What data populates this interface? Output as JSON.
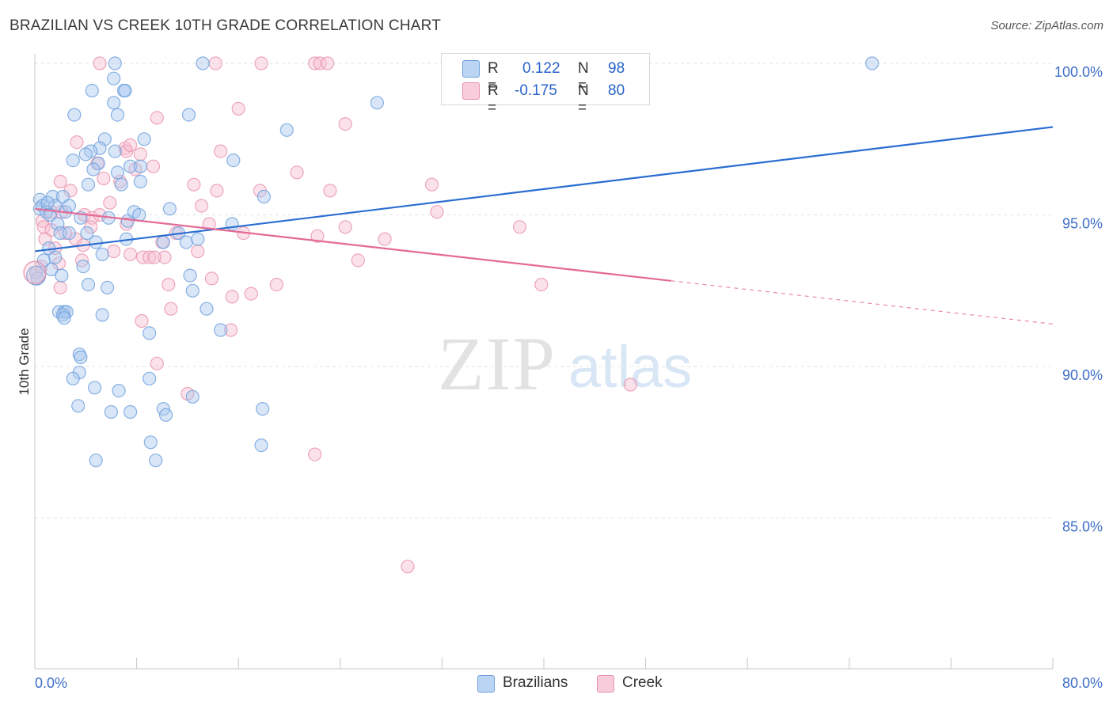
{
  "header": {
    "title": "BRAZILIAN VS CREEK 10TH GRADE CORRELATION CHART",
    "source": "Source: ZipAtlas.com"
  },
  "legend": {
    "rows": [
      {
        "r_label": "R =",
        "r_value": "0.122",
        "n_label": "N =",
        "n_value": "98"
      },
      {
        "r_label": "R =",
        "r_value": "-0.175",
        "n_label": "N =",
        "n_value": "80"
      }
    ]
  },
  "bottom_legend": {
    "items": [
      {
        "label": "Brazilians"
      },
      {
        "label": "Creek"
      }
    ]
  },
  "watermark": {
    "zip": "ZIP",
    "atlas": "atlas"
  },
  "colors": {
    "blue_fill": "#a9c8ef",
    "blue_stroke": "#6d9fdc",
    "blue_line": "#2a6dd1",
    "pink_fill": "#f6bfd0",
    "pink_stroke": "#e891ad",
    "pink_line": "#e46a95",
    "value_text": "#3f6fc9"
  },
  "chart_data": {
    "type": "scatter",
    "title": "BRAZILIAN VS CREEK 10TH GRADE CORRELATION CHART",
    "xlabel": "",
    "ylabel": "10th Grade",
    "xlim": [
      0,
      80
    ],
    "ylim": [
      80.7,
      101.0
    ],
    "x_tick_labels": [
      "0.0%",
      "80.0%"
    ],
    "y_ticks": [
      85,
      90,
      95,
      100
    ],
    "y_tick_labels": [
      "85.0%",
      "90.0%",
      "95.0%",
      "100.0%"
    ],
    "grid": true,
    "series": [
      {
        "name": "Brazilians",
        "r": 0.122,
        "n": 98,
        "trend": {
          "x0": 0,
          "y0": 93.8,
          "x1": 80,
          "y1": 97.9,
          "solid_until": 80
        },
        "points": [
          [
            6.3,
            100
          ],
          [
            13.2,
            100
          ],
          [
            65.8,
            100
          ],
          [
            6.2,
            99.5
          ],
          [
            4.5,
            99.1
          ],
          [
            7.0,
            99.1
          ],
          [
            7.1,
            99.1
          ],
          [
            6.2,
            98.7
          ],
          [
            26.9,
            98.7
          ],
          [
            3.1,
            98.3
          ],
          [
            6.5,
            98.3
          ],
          [
            12.1,
            98.3
          ],
          [
            19.8,
            97.8
          ],
          [
            5.5,
            97.5
          ],
          [
            8.6,
            97.5
          ],
          [
            5.1,
            97.2
          ],
          [
            4.4,
            97.1
          ],
          [
            4.0,
            97.0
          ],
          [
            6.3,
            97.1
          ],
          [
            3.0,
            96.8
          ],
          [
            5.0,
            96.7
          ],
          [
            7.5,
            96.6
          ],
          [
            15.6,
            96.8
          ],
          [
            4.6,
            96.5
          ],
          [
            6.5,
            96.4
          ],
          [
            8.3,
            96.1
          ],
          [
            4.2,
            96.0
          ],
          [
            0.4,
            95.5
          ],
          [
            1.4,
            95.6
          ],
          [
            2.2,
            95.6
          ],
          [
            18.0,
            95.6
          ],
          [
            1.6,
            95.3
          ],
          [
            0.6,
            95.3
          ],
          [
            0.4,
            95.2
          ],
          [
            0.9,
            95.1
          ],
          [
            2.4,
            95.1
          ],
          [
            10.6,
            95.2
          ],
          [
            1.2,
            95.0
          ],
          [
            5.8,
            94.9
          ],
          [
            1.8,
            94.7
          ],
          [
            7.3,
            94.8
          ],
          [
            15.5,
            94.7
          ],
          [
            2.0,
            94.4
          ],
          [
            4.1,
            94.4
          ],
          [
            11.3,
            94.4
          ],
          [
            7.2,
            94.2
          ],
          [
            4.8,
            94.1
          ],
          [
            10.1,
            94.1
          ],
          [
            11.9,
            94.1
          ],
          [
            2.7,
            94.4
          ],
          [
            1.1,
            93.9
          ],
          [
            5.3,
            93.7
          ],
          [
            1.6,
            93.6
          ],
          [
            3.8,
            93.3
          ],
          [
            1.3,
            93.2
          ],
          [
            0.1,
            93.1
          ],
          [
            2.1,
            93.0
          ],
          [
            12.2,
            93.0
          ],
          [
            0.2,
            92.9
          ],
          [
            4.2,
            92.7
          ],
          [
            5.7,
            92.6
          ],
          [
            12.4,
            92.5
          ],
          [
            1.9,
            91.8
          ],
          [
            2.3,
            91.8
          ],
          [
            5.3,
            91.7
          ],
          [
            13.5,
            91.9
          ],
          [
            2.5,
            91.8
          ],
          [
            2.2,
            91.7
          ],
          [
            2.3,
            91.6
          ],
          [
            14.6,
            91.2
          ],
          [
            9.0,
            91.1
          ],
          [
            3.5,
            90.4
          ],
          [
            3.6,
            90.3
          ],
          [
            3.5,
            89.8
          ],
          [
            3.0,
            89.6
          ],
          [
            9.0,
            89.6
          ],
          [
            4.7,
            89.3
          ],
          [
            6.6,
            89.2
          ],
          [
            12.4,
            89.0
          ],
          [
            3.4,
            88.7
          ],
          [
            6.0,
            88.5
          ],
          [
            7.5,
            88.5
          ],
          [
            10.1,
            88.6
          ],
          [
            10.3,
            88.4
          ],
          [
            17.9,
            88.6
          ],
          [
            9.1,
            87.5
          ],
          [
            17.8,
            87.4
          ],
          [
            4.8,
            86.9
          ],
          [
            9.5,
            86.9
          ],
          [
            8.3,
            96.6
          ],
          [
            6.8,
            96.0
          ],
          [
            1.0,
            95.4
          ],
          [
            2.7,
            95.3
          ],
          [
            7.8,
            95.1
          ],
          [
            0.7,
            93.5
          ],
          [
            3.6,
            94.9
          ],
          [
            8.2,
            95.0
          ],
          [
            12.8,
            94.2
          ]
        ]
      },
      {
        "name": "Creek",
        "r": -0.175,
        "n": 80,
        "trend": {
          "x0": 0,
          "y0": 95.2,
          "x1": 80,
          "y1": 91.4,
          "solid_until": 50
        },
        "points": [
          [
            5.1,
            100
          ],
          [
            14.2,
            100
          ],
          [
            17.8,
            100
          ],
          [
            22.0,
            100
          ],
          [
            22.4,
            100
          ],
          [
            23.0,
            100
          ],
          [
            16.0,
            98.5
          ],
          [
            9.6,
            98.2
          ],
          [
            24.4,
            98.0
          ],
          [
            3.3,
            97.4
          ],
          [
            7.1,
            97.2
          ],
          [
            7.2,
            97.1
          ],
          [
            7.5,
            97.3
          ],
          [
            8.3,
            97.0
          ],
          [
            14.6,
            97.1
          ],
          [
            4.9,
            96.7
          ],
          [
            9.3,
            96.6
          ],
          [
            7.9,
            96.5
          ],
          [
            20.6,
            96.4
          ],
          [
            2.0,
            96.1
          ],
          [
            6.7,
            96.1
          ],
          [
            5.4,
            96.2
          ],
          [
            12.5,
            96.0
          ],
          [
            17.7,
            95.8
          ],
          [
            23.2,
            95.8
          ],
          [
            14.3,
            95.8
          ],
          [
            31.2,
            96.0
          ],
          [
            2.8,
            95.8
          ],
          [
            5.9,
            95.4
          ],
          [
            13.1,
            95.3
          ],
          [
            31.6,
            95.1
          ],
          [
            1.3,
            95.1
          ],
          [
            2.1,
            95.1
          ],
          [
            3.9,
            95.0
          ],
          [
            4.5,
            94.9
          ],
          [
            0.6,
            94.8
          ],
          [
            0.7,
            94.6
          ],
          [
            1.3,
            94.5
          ],
          [
            2.4,
            94.4
          ],
          [
            4.4,
            94.6
          ],
          [
            24.4,
            94.6
          ],
          [
            38.1,
            94.6
          ],
          [
            16.4,
            94.4
          ],
          [
            22.2,
            94.3
          ],
          [
            27.5,
            94.2
          ],
          [
            3.2,
            94.2
          ],
          [
            10.0,
            94.1
          ],
          [
            11.1,
            94.4
          ],
          [
            0.8,
            94.2
          ],
          [
            3.8,
            94.0
          ],
          [
            6.2,
            93.8
          ],
          [
            12.8,
            93.8
          ],
          [
            1.6,
            93.9
          ],
          [
            7.5,
            93.7
          ],
          [
            8.5,
            93.6
          ],
          [
            9.0,
            93.6
          ],
          [
            10.2,
            93.6
          ],
          [
            3.7,
            93.5
          ],
          [
            25.4,
            93.5
          ],
          [
            0.5,
            93.3
          ],
          [
            1.9,
            93.4
          ],
          [
            13.9,
            92.9
          ],
          [
            19.0,
            92.7
          ],
          [
            10.5,
            92.7
          ],
          [
            39.8,
            92.7
          ],
          [
            2.0,
            92.6
          ],
          [
            17.0,
            92.4
          ],
          [
            15.5,
            92.3
          ],
          [
            10.7,
            91.9
          ],
          [
            8.4,
            91.5
          ],
          [
            15.4,
            91.2
          ],
          [
            9.6,
            90.1
          ],
          [
            12.0,
            89.1
          ],
          [
            46.8,
            89.4
          ],
          [
            22.0,
            87.1
          ],
          [
            29.3,
            83.4
          ],
          [
            5.1,
            95.0
          ],
          [
            9.4,
            93.6
          ],
          [
            7.2,
            94.7
          ],
          [
            13.7,
            94.7
          ]
        ]
      }
    ]
  }
}
